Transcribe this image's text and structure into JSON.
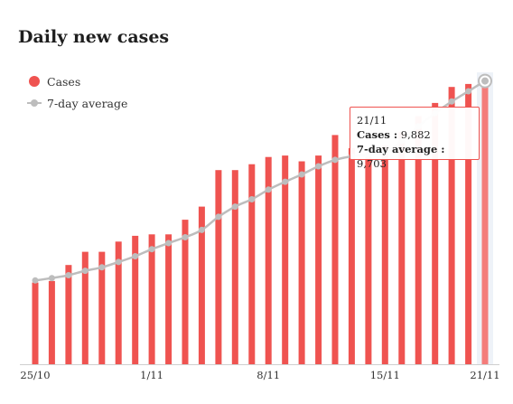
{
  "title": "Daily new cases",
  "legend": {
    "cases": "Cases",
    "avg": "7-day average"
  },
  "colors": {
    "cases": "#ef5350",
    "cases_highlight": "#f47c7a",
    "average": "#bdbdbd",
    "hover_band": "#eef2f8"
  },
  "tooltip": {
    "date": "21/11",
    "cases_label": "Cases :",
    "cases_value": "9,882",
    "avg_label": "7-day average :",
    "avg_value": "9,703"
  },
  "chart_data": {
    "type": "bar",
    "title": "Daily new cases",
    "categories": [
      "25/10",
      "26/10",
      "27/10",
      "28/10",
      "29/10",
      "30/10",
      "31/10",
      "1/11",
      "2/11",
      "3/11",
      "4/11",
      "5/11",
      "6/11",
      "7/11",
      "8/11",
      "9/11",
      "10/11",
      "11/11",
      "12/11",
      "13/11",
      "14/11",
      "15/11",
      "16/11",
      "17/11",
      "18/11",
      "19/11",
      "20/11",
      "21/11"
    ],
    "x_tick_labels": [
      "25/10",
      "1/11",
      "8/11",
      "15/11",
      "21/11"
    ],
    "ylim": [
      0,
      10000
    ],
    "series": [
      {
        "name": "Cases",
        "type": "bar",
        "values": [
          2800,
          2850,
          3400,
          3850,
          3850,
          4200,
          4400,
          4450,
          4450,
          4950,
          5400,
          6650,
          6650,
          6850,
          7100,
          7150,
          6950,
          7150,
          7850,
          7400,
          7100,
          7500,
          7950,
          8500,
          8950,
          9500,
          9600,
          9882
        ]
      },
      {
        "name": "7-day average",
        "type": "line",
        "values": [
          2870,
          2950,
          3050,
          3200,
          3320,
          3500,
          3700,
          3940,
          4150,
          4350,
          4600,
          5050,
          5400,
          5650,
          5980,
          6250,
          6500,
          6780,
          7000,
          7120,
          7180,
          7260,
          7650,
          8150,
          8600,
          9000,
          9350,
          9703
        ]
      }
    ],
    "highlighted_category": "21/11"
  }
}
